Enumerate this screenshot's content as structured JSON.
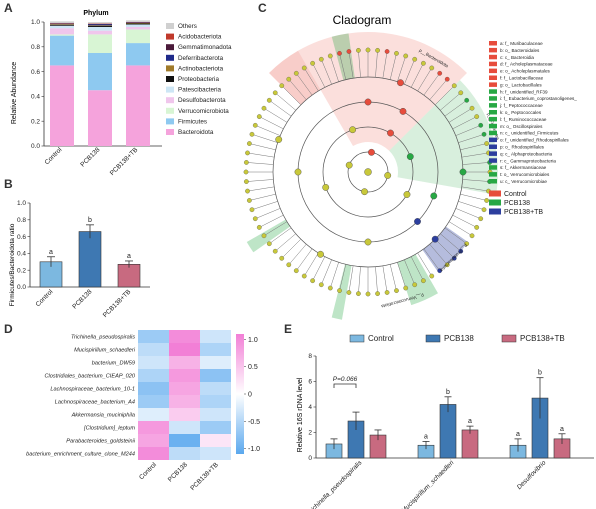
{
  "panels": {
    "A": {
      "letter": "A",
      "title": "Phylum",
      "ylabel": "Relative Abundance",
      "chart_data": {
        "type": "bar",
        "stacked": true,
        "categories": [
          "Control",
          "PCB138",
          "PCB138+TB"
        ],
        "ylim": [
          0,
          1
        ],
        "yticks": [
          "0.0",
          "0.2",
          "0.4",
          "0.6",
          "0.8",
          "1.0"
        ],
        "series": [
          {
            "name": "Bacteroidota",
            "color": "#f5a3dc",
            "values": [
              0.65,
              0.45,
              0.65
            ]
          },
          {
            "name": "Firmicutes",
            "color": "#8ec9f0",
            "values": [
              0.24,
              0.3,
              0.18
            ]
          },
          {
            "name": "Verrucomicrobiota",
            "color": "#d8f5d4",
            "values": [
              0.01,
              0.15,
              0.11
            ]
          },
          {
            "name": "Desulfobacterota",
            "color": "#f0c6ec",
            "values": [
              0.05,
              0.03,
              0.02
            ]
          },
          {
            "name": "Patescibacteria",
            "color": "#cde6f5",
            "values": [
              0.02,
              0.03,
              0.02
            ]
          },
          {
            "name": "Proteobacteria",
            "color": "#111111",
            "values": [
              0.008,
              0.008,
              0.008
            ]
          },
          {
            "name": "Actinobacteriota",
            "color": "#a07a2a",
            "values": [
              0.005,
              0.005,
              0.005
            ]
          },
          {
            "name": "Deferribacterota",
            "color": "#1f2a8a",
            "values": [
              0.004,
              0.01,
              0.004
            ]
          },
          {
            "name": "Gemmatimonadota",
            "color": "#4a1a3a",
            "values": [
              0.002,
              0.002,
              0.002
            ]
          },
          {
            "name": "Acidobacteriota",
            "color": "#c0392b",
            "values": [
              0.002,
              0.002,
              0.002
            ]
          },
          {
            "name": "Others",
            "color": "#d0d0d0",
            "values": [
              0.014,
              0.012,
              0.012
            ]
          }
        ]
      }
    },
    "B": {
      "letter": "B",
      "ylabel": "Firmicutes/Bacteroidota ratio",
      "chart_data": {
        "type": "bar",
        "categories": [
          "Control",
          "PCB138",
          "PCB138+TB"
        ],
        "values": [
          0.3,
          0.66,
          0.27
        ],
        "errors": [
          0.06,
          0.08,
          0.04
        ],
        "letters": [
          "a",
          "b",
          "a"
        ],
        "colors": [
          "#7cb8e0",
          "#3e78b2",
          "#c86a80"
        ],
        "ylim": [
          0,
          1.0
        ],
        "yticks": [
          "0.0",
          "0.2",
          "0.4",
          "0.6",
          "0.8",
          "1.0"
        ]
      }
    },
    "C": {
      "letter": "C",
      "title": "Cladogram",
      "groups": [
        {
          "name": "Control",
          "color": "#e74c3c"
        },
        {
          "name": "PCB138",
          "color": "#27a844"
        },
        {
          "name": "PCB138+TB",
          "color": "#2c3e9e"
        }
      ],
      "taxa": [
        {
          "label": "a: f_ Muribaculaceae",
          "color": "#e74c3c"
        },
        {
          "label": "b: o_ Bacteroidales",
          "color": "#e74c3c"
        },
        {
          "label": "c: c_ Bacteroidia",
          "color": "#e74c3c"
        },
        {
          "label": "d: f_ Acholeplasmataceae",
          "color": "#e74c3c"
        },
        {
          "label": "e: o_ Acholeplasmatales",
          "color": "#e74c3c"
        },
        {
          "label": "f: f_ Lactobacillaceae",
          "color": "#e74c3c"
        },
        {
          "label": "g: o_ Lactobacillales",
          "color": "#e74c3c"
        },
        {
          "label": "h: f_ unidentified_RF39",
          "color": "#27a844"
        },
        {
          "label": "i: f_ Eubacterium_coprostanoligenes_",
          "color": "#27a844"
        },
        {
          "label": "j: f_ Peptococcaceae",
          "color": "#27a844"
        },
        {
          "label": "k: o_ Peptococcales",
          "color": "#27a844"
        },
        {
          "label": "l: f_ Ruminococcaceae",
          "color": "#27a844"
        },
        {
          "label": "m: o_ Oscillospirales",
          "color": "#27a844"
        },
        {
          "label": "n: c_ unidentified_Firmicutes",
          "color": "#27a844"
        },
        {
          "label": "o: f_ unidentified_Rhodospirillales",
          "color": "#2c3e9e"
        },
        {
          "label": "p: o_ Rhodospirillales",
          "color": "#2c3e9e"
        },
        {
          "label": "q: c_ Alphaproteobacteria",
          "color": "#2c3e9e"
        },
        {
          "label": "r: c_ Gammaproteobacteria",
          "color": "#2c3e9e"
        },
        {
          "label": "s: f_ Akkermansiaceae",
          "color": "#27a844"
        },
        {
          "label": "t: o_ Verrucomicrobiales",
          "color": "#27a844"
        },
        {
          "label": "u: c_ Verrucomicrobiae",
          "color": "#27a844"
        }
      ],
      "sector_labels": [
        "p__Bacteroidota",
        "p__Verrucomicrobiota",
        "p__Firmicutes",
        "p__Proteobacteria"
      ]
    },
    "D": {
      "letter": "D",
      "chart_data": {
        "type": "heatmap",
        "rows": [
          "Trichinella_pseudospiralis",
          "Mucispirillum_schaedleri",
          "bacterium_DW59",
          "Clostridiales_bacterium_CIEAP_020",
          "Lachnospiraceae_bacterium_10-1",
          "Lachnospiraceae_bacterium_A4",
          "Akkermansia_muciniphila",
          "[Clostridium]_leptum",
          "Parabacteroides_goldsteinii",
          "bacterium_enrichment_culture_clone_M244"
        ],
        "columns": [
          "Control",
          "PCB138",
          "PCB138+TB"
        ],
        "values": [
          [
            -0.6,
            0.9,
            -0.3
          ],
          [
            -0.4,
            1.0,
            -0.5
          ],
          [
            -0.3,
            0.6,
            -0.2
          ],
          [
            -0.5,
            0.8,
            -0.7
          ],
          [
            -0.7,
            0.7,
            -0.4
          ],
          [
            -0.6,
            0.6,
            -0.5
          ],
          [
            -0.2,
            0.4,
            -0.3
          ],
          [
            0.8,
            -0.3,
            -0.6
          ],
          [
            0.7,
            -0.9,
            0.2
          ],
          [
            0.9,
            -0.4,
            -0.3
          ]
        ],
        "scale_ticks": [
          "1.0",
          "0.5",
          "0",
          "-0.5",
          "-1.0"
        ],
        "scale_colors": {
          "high": "#f27fd6",
          "mid": "#ffffff",
          "low": "#5aa8ee"
        }
      }
    },
    "E": {
      "letter": "E",
      "ylabel": "Relative 16S rDNA level",
      "pvalue": "P=0.066",
      "chart_data": {
        "type": "bar",
        "categories": [
          "Trichinella_pseudospiralis",
          "Mucispirillum_schaedleri",
          "Desulfovibrio"
        ],
        "ylim": [
          0,
          8
        ],
        "yticks": [
          "0",
          "2",
          "4",
          "6",
          "8"
        ],
        "series": [
          {
            "name": "Control",
            "color": "#7cb8e0",
            "values": [
              1.1,
              1.0,
              1.0
            ],
            "errors": [
              0.4,
              0.3,
              0.5
            ],
            "letters": [
              "",
              "a",
              "a"
            ]
          },
          {
            "name": "PCB138",
            "color": "#3e78b2",
            "values": [
              2.9,
              4.2,
              4.7
            ],
            "errors": [
              0.7,
              0.6,
              1.6
            ],
            "letters": [
              "",
              "b",
              "b"
            ]
          },
          {
            "name": "PCB138+TB",
            "color": "#c86a80",
            "values": [
              1.8,
              2.2,
              1.5
            ],
            "errors": [
              0.4,
              0.3,
              0.4
            ],
            "letters": [
              "",
              "a",
              "a"
            ]
          }
        ]
      }
    }
  }
}
